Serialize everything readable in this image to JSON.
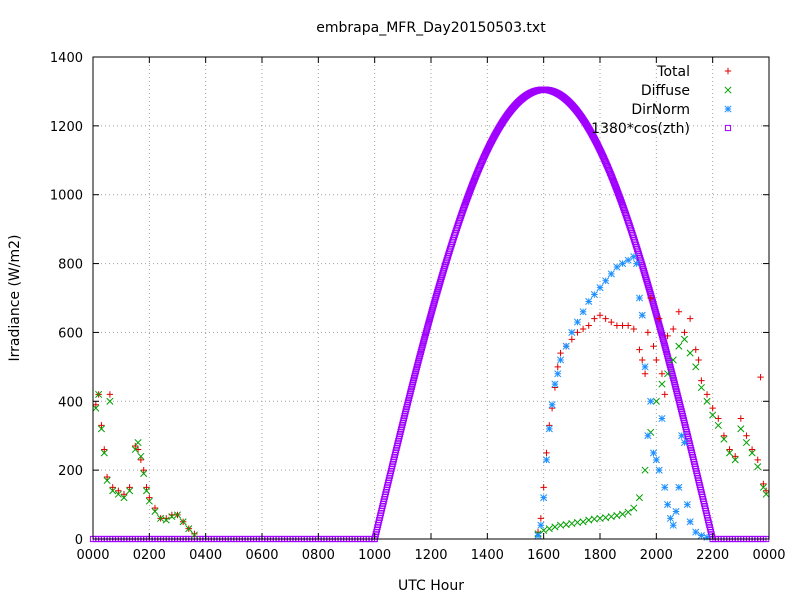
{
  "chart_data": {
    "type": "scatter",
    "title": "embrapa_MFR_Day20150503.txt",
    "xlabel": "UTC Hour",
    "ylabel": "Irradiance (W/m2)",
    "xlim": [
      0,
      24
    ],
    "ylim": [
      0,
      1400
    ],
    "grid": true,
    "legend_position": "top-right",
    "x_ticks": [
      0,
      2,
      4,
      6,
      8,
      10,
      12,
      14,
      16,
      18,
      20,
      22,
      24
    ],
    "x_tick_labels": [
      "0000",
      "0200",
      "0400",
      "0600",
      "0800",
      "1000",
      "1200",
      "1400",
      "1600",
      "1800",
      "2000",
      "2200",
      "0000"
    ],
    "y_ticks": [
      0,
      200,
      400,
      600,
      800,
      1000,
      1200,
      1400
    ],
    "y_tick_labels": [
      "0",
      "200",
      "400",
      "600",
      "800",
      "1000",
      "1200",
      "1400"
    ],
    "series": [
      {
        "name": "Total",
        "marker": "plus",
        "color": "#e00000",
        "points": [
          [
            0.1,
            390
          ],
          [
            0.2,
            420
          ],
          [
            0.3,
            330
          ],
          [
            0.4,
            260
          ],
          [
            0.5,
            180
          ],
          [
            0.6,
            420
          ],
          [
            0.7,
            150
          ],
          [
            0.9,
            140
          ],
          [
            1.1,
            130
          ],
          [
            1.3,
            150
          ],
          [
            1.5,
            270
          ],
          [
            1.6,
            260
          ],
          [
            1.7,
            230
          ],
          [
            1.8,
            200
          ],
          [
            1.9,
            150
          ],
          [
            2.0,
            120
          ],
          [
            2.2,
            90
          ],
          [
            2.4,
            60
          ],
          [
            2.6,
            60
          ],
          [
            2.8,
            70
          ],
          [
            3.0,
            70
          ],
          [
            3.2,
            50
          ],
          [
            3.4,
            30
          ],
          [
            3.6,
            15
          ],
          [
            15.8,
            20
          ],
          [
            15.9,
            60
          ],
          [
            16.0,
            150
          ],
          [
            16.1,
            250
          ],
          [
            16.2,
            330
          ],
          [
            16.3,
            380
          ],
          [
            16.4,
            440
          ],
          [
            16.5,
            500
          ],
          [
            16.6,
            540
          ],
          [
            16.8,
            560
          ],
          [
            17.0,
            580
          ],
          [
            17.2,
            600
          ],
          [
            17.4,
            610
          ],
          [
            17.6,
            620
          ],
          [
            17.8,
            640
          ],
          [
            18.0,
            650
          ],
          [
            18.2,
            640
          ],
          [
            18.4,
            630
          ],
          [
            18.6,
            620
          ],
          [
            18.8,
            620
          ],
          [
            19.0,
            620
          ],
          [
            19.2,
            610
          ],
          [
            19.4,
            550
          ],
          [
            19.5,
            520
          ],
          [
            19.6,
            480
          ],
          [
            19.7,
            600
          ],
          [
            19.8,
            700
          ],
          [
            19.9,
            560
          ],
          [
            20.0,
            520
          ],
          [
            20.1,
            640
          ],
          [
            20.2,
            480
          ],
          [
            20.3,
            420
          ],
          [
            20.4,
            590
          ],
          [
            20.6,
            610
          ],
          [
            20.8,
            660
          ],
          [
            21.0,
            600
          ],
          [
            21.2,
            640
          ],
          [
            21.4,
            550
          ],
          [
            21.5,
            520
          ],
          [
            21.6,
            460
          ],
          [
            21.8,
            420
          ],
          [
            22.0,
            380
          ],
          [
            22.2,
            350
          ],
          [
            22.4,
            300
          ],
          [
            22.6,
            260
          ],
          [
            22.8,
            240
          ],
          [
            23.0,
            350
          ],
          [
            23.2,
            300
          ],
          [
            23.4,
            260
          ],
          [
            23.6,
            230
          ],
          [
            23.7,
            470
          ],
          [
            23.8,
            160
          ],
          [
            23.9,
            140
          ]
        ]
      },
      {
        "name": "Diffuse",
        "marker": "cross",
        "color": "#00a000",
        "points": [
          [
            0.1,
            380
          ],
          [
            0.2,
            420
          ],
          [
            0.3,
            320
          ],
          [
            0.4,
            250
          ],
          [
            0.5,
            170
          ],
          [
            0.6,
            400
          ],
          [
            0.7,
            140
          ],
          [
            0.9,
            130
          ],
          [
            1.1,
            120
          ],
          [
            1.3,
            140
          ],
          [
            1.5,
            260
          ],
          [
            1.6,
            280
          ],
          [
            1.7,
            240
          ],
          [
            1.8,
            190
          ],
          [
            1.9,
            140
          ],
          [
            2.0,
            110
          ],
          [
            2.2,
            80
          ],
          [
            2.4,
            60
          ],
          [
            2.6,
            55
          ],
          [
            2.8,
            65
          ],
          [
            3.0,
            70
          ],
          [
            3.2,
            50
          ],
          [
            3.4,
            30
          ],
          [
            3.6,
            12
          ],
          [
            15.8,
            15
          ],
          [
            16.0,
            25
          ],
          [
            16.2,
            30
          ],
          [
            16.4,
            35
          ],
          [
            16.6,
            40
          ],
          [
            16.8,
            42
          ],
          [
            17.0,
            45
          ],
          [
            17.2,
            48
          ],
          [
            17.4,
            50
          ],
          [
            17.6,
            55
          ],
          [
            17.8,
            58
          ],
          [
            18.0,
            60
          ],
          [
            18.2,
            62
          ],
          [
            18.4,
            65
          ],
          [
            18.6,
            68
          ],
          [
            18.8,
            72
          ],
          [
            19.0,
            78
          ],
          [
            19.2,
            90
          ],
          [
            19.4,
            120
          ],
          [
            19.6,
            200
          ],
          [
            19.8,
            310
          ],
          [
            20.0,
            400
          ],
          [
            20.2,
            450
          ],
          [
            20.4,
            480
          ],
          [
            20.6,
            520
          ],
          [
            20.8,
            560
          ],
          [
            21.0,
            580
          ],
          [
            21.2,
            540
          ],
          [
            21.4,
            500
          ],
          [
            21.6,
            440
          ],
          [
            21.8,
            400
          ],
          [
            22.0,
            360
          ],
          [
            22.2,
            330
          ],
          [
            22.4,
            290
          ],
          [
            22.6,
            250
          ],
          [
            22.8,
            230
          ],
          [
            23.0,
            320
          ],
          [
            23.2,
            280
          ],
          [
            23.4,
            250
          ],
          [
            23.6,
            210
          ],
          [
            23.8,
            150
          ],
          [
            23.9,
            130
          ]
        ]
      },
      {
        "name": "DirNorm",
        "marker": "star",
        "color": "#1e90ff",
        "points": [
          [
            15.8,
            10
          ],
          [
            15.9,
            40
          ],
          [
            16.0,
            120
          ],
          [
            16.1,
            230
          ],
          [
            16.2,
            320
          ],
          [
            16.3,
            390
          ],
          [
            16.4,
            450
          ],
          [
            16.5,
            480
          ],
          [
            16.6,
            520
          ],
          [
            16.8,
            560
          ],
          [
            17.0,
            600
          ],
          [
            17.2,
            630
          ],
          [
            17.4,
            660
          ],
          [
            17.6,
            690
          ],
          [
            17.8,
            710
          ],
          [
            18.0,
            730
          ],
          [
            18.2,
            750
          ],
          [
            18.4,
            770
          ],
          [
            18.6,
            790
          ],
          [
            18.8,
            800
          ],
          [
            19.0,
            810
          ],
          [
            19.2,
            820
          ],
          [
            19.3,
            800
          ],
          [
            19.4,
            700
          ],
          [
            19.5,
            650
          ],
          [
            19.6,
            500
          ],
          [
            19.7,
            300
          ],
          [
            19.8,
            400
          ],
          [
            19.9,
            250
          ],
          [
            20.0,
            230
          ],
          [
            20.1,
            200
          ],
          [
            20.2,
            350
          ],
          [
            20.3,
            150
          ],
          [
            20.4,
            100
          ],
          [
            20.5,
            60
          ],
          [
            20.6,
            40
          ],
          [
            20.7,
            80
          ],
          [
            20.8,
            150
          ],
          [
            20.9,
            300
          ],
          [
            21.0,
            280
          ],
          [
            21.1,
            100
          ],
          [
            21.2,
            50
          ],
          [
            21.4,
            20
          ],
          [
            21.6,
            10
          ],
          [
            21.8,
            5
          ]
        ]
      },
      {
        "name": "1380*cos(zth)",
        "marker": "square",
        "color": "#a000ff",
        "model": {
          "kind": "half-sine",
          "zero_before": 10.0,
          "zero_after": 22.0,
          "peak_x": 16.0,
          "peak_y": 1305,
          "step": 0.02,
          "baseline_step": 0.1
        }
      }
    ]
  }
}
